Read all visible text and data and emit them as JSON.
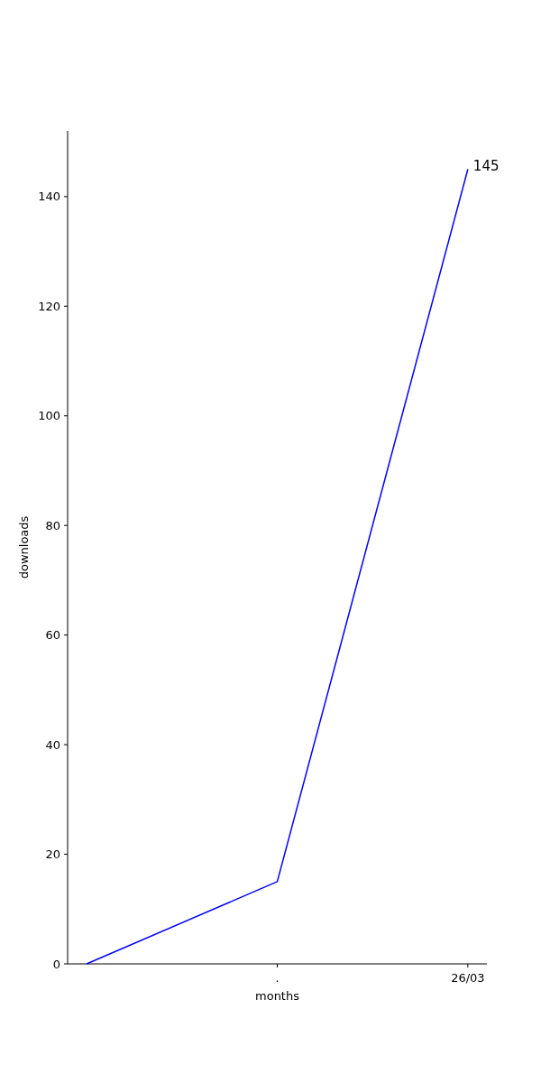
{
  "chart_data": {
    "type": "line",
    "xlabel": "months",
    "ylabel": "downloads",
    "categories": [
      null,
      ".",
      "26/03"
    ],
    "series": [
      {
        "color": "#0000ff",
        "values": [
          0,
          15,
          145
        ],
        "value_labels": [
          null,
          null,
          "145"
        ]
      }
    ],
    "ylim": [
      0,
      152
    ],
    "yticks": [
      0,
      20,
      40,
      60,
      80,
      100,
      120,
      140
    ],
    "grid": false,
    "marker": "none",
    "line_style": "solid"
  }
}
